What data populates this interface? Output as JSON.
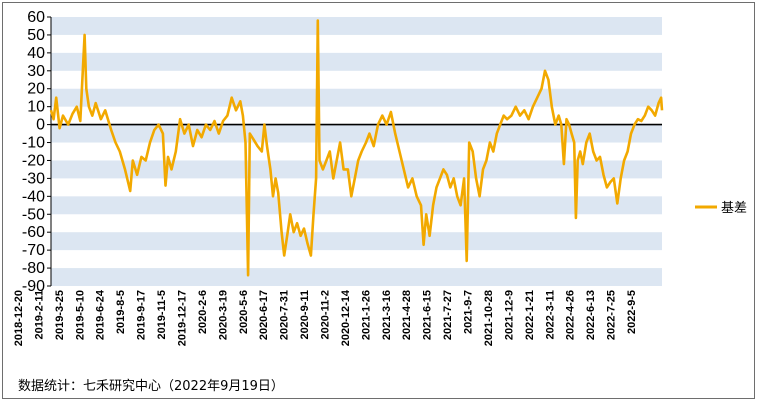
{
  "chart_data": {
    "type": "line",
    "title": "",
    "xlabel": "",
    "ylabel": "",
    "ylim": [
      -90,
      60
    ],
    "yticks": [
      60,
      50,
      40,
      30,
      20,
      10,
      0,
      -10,
      -20,
      -30,
      -40,
      -50,
      -60,
      -70,
      -80,
      -90
    ],
    "xticks": [
      "2018-12-20",
      "2019-2-11",
      "2019-3-25",
      "2019-5-10",
      "2019-6-24",
      "2019-8-5",
      "2019-9-17",
      "2019-11-5",
      "2019-12-17",
      "2020-2-6",
      "2020-3-19",
      "2020-5-6",
      "2020-6-17",
      "2020-7-31",
      "2020-9-11",
      "2020-11-2",
      "2020-12-14",
      "2021-1-26",
      "2021-3-16",
      "2021-4-28",
      "2021-6-15",
      "2021-7-27",
      "2021-9-7",
      "2021-10-28",
      "2021-12-9",
      "2022-1-21",
      "2022-3-11",
      "2022-4-26",
      "2022-6-13",
      "2022-7-25",
      "2022-9-5"
    ],
    "grid": "horizontal-bands",
    "legend_position": "right",
    "colors": {
      "line": "#F2A900",
      "band": "#DCE6F2",
      "zero": "#000000"
    },
    "series": [
      {
        "name": "基差",
        "points": [
          [
            0,
            8
          ],
          [
            0.3,
            3
          ],
          [
            0.6,
            15
          ],
          [
            1,
            -2
          ],
          [
            1.4,
            5
          ],
          [
            2,
            0
          ],
          [
            2.5,
            6
          ],
          [
            3,
            10
          ],
          [
            3.4,
            2
          ],
          [
            3.7,
            30
          ],
          [
            3.9,
            50
          ],
          [
            4.1,
            20
          ],
          [
            4.4,
            10
          ],
          [
            4.8,
            5
          ],
          [
            5.2,
            12
          ],
          [
            5.8,
            3
          ],
          [
            6.3,
            8
          ],
          [
            7,
            -3
          ],
          [
            7.5,
            -10
          ],
          [
            8,
            -15
          ],
          [
            8.6,
            -25
          ],
          [
            9.2,
            -37
          ],
          [
            9.5,
            -20
          ],
          [
            10,
            -28
          ],
          [
            10.5,
            -18
          ],
          [
            11,
            -20
          ],
          [
            11.5,
            -10
          ],
          [
            12,
            -3
          ],
          [
            12.5,
            0
          ],
          [
            13,
            -5
          ],
          [
            13.3,
            -34
          ],
          [
            13.6,
            -18
          ],
          [
            14,
            -25
          ],
          [
            14.5,
            -15
          ],
          [
            15,
            3
          ],
          [
            15.5,
            -5
          ],
          [
            16,
            0
          ],
          [
            16.5,
            -12
          ],
          [
            17,
            -3
          ],
          [
            17.5,
            -7
          ],
          [
            18,
            0
          ],
          [
            18.5,
            -3
          ],
          [
            19,
            2
          ],
          [
            19.5,
            -5
          ],
          [
            20,
            2
          ],
          [
            20.5,
            5
          ],
          [
            21,
            15
          ],
          [
            21.5,
            8
          ],
          [
            22,
            13
          ],
          [
            22.3,
            5
          ],
          [
            22.6,
            -10
          ],
          [
            22.9,
            -84
          ],
          [
            23.1,
            -5
          ],
          [
            23.5,
            -8
          ],
          [
            24,
            -12
          ],
          [
            24.5,
            -15
          ],
          [
            24.8,
            0
          ],
          [
            25.1,
            -12
          ],
          [
            25.5,
            -25
          ],
          [
            25.8,
            -40
          ],
          [
            26.1,
            -30
          ],
          [
            26.4,
            -38
          ],
          [
            26.8,
            -60
          ],
          [
            27.1,
            -73
          ],
          [
            27.5,
            -60
          ],
          [
            27.8,
            -50
          ],
          [
            28.2,
            -60
          ],
          [
            28.6,
            -55
          ],
          [
            29,
            -62
          ],
          [
            29.4,
            -58
          ],
          [
            29.8,
            -66
          ],
          [
            30.2,
            -73
          ],
          [
            30.5,
            -50
          ],
          [
            30.8,
            -30
          ],
          [
            31,
            58
          ],
          [
            31.2,
            -20
          ],
          [
            31.6,
            -25
          ],
          [
            32,
            -20
          ],
          [
            32.4,
            -15
          ],
          [
            32.8,
            -30
          ],
          [
            33.2,
            -20
          ],
          [
            33.6,
            -10
          ],
          [
            34,
            -25
          ],
          [
            34.5,
            -25
          ],
          [
            34.9,
            -40
          ],
          [
            35.3,
            -30
          ],
          [
            35.7,
            -20
          ],
          [
            36.1,
            -15
          ],
          [
            36.6,
            -10
          ],
          [
            37,
            -5
          ],
          [
            37.5,
            -12
          ],
          [
            38,
            0
          ],
          [
            38.5,
            5
          ],
          [
            39,
            0
          ],
          [
            39.5,
            7
          ],
          [
            40,
            -5
          ],
          [
            40.5,
            -15
          ],
          [
            41,
            -25
          ],
          [
            41.5,
            -35
          ],
          [
            42,
            -30
          ],
          [
            42.5,
            -40
          ],
          [
            43,
            -45
          ],
          [
            43.3,
            -67
          ],
          [
            43.6,
            -50
          ],
          [
            44,
            -62
          ],
          [
            44.4,
            -45
          ],
          [
            44.8,
            -35
          ],
          [
            45.2,
            -30
          ],
          [
            45.6,
            -25
          ],
          [
            46,
            -28
          ],
          [
            46.4,
            -35
          ],
          [
            46.8,
            -30
          ],
          [
            47.2,
            -40
          ],
          [
            47.6,
            -45
          ],
          [
            48,
            -30
          ],
          [
            48.3,
            -76
          ],
          [
            48.6,
            -10
          ],
          [
            49,
            -15
          ],
          [
            49.4,
            -30
          ],
          [
            49.8,
            -40
          ],
          [
            50.2,
            -25
          ],
          [
            50.6,
            -20
          ],
          [
            51,
            -10
          ],
          [
            51.4,
            -15
          ],
          [
            51.8,
            -5
          ],
          [
            52.2,
            0
          ],
          [
            52.6,
            5
          ],
          [
            53,
            3
          ],
          [
            53.5,
            5
          ],
          [
            54,
            10
          ],
          [
            54.5,
            5
          ],
          [
            55,
            8
          ],
          [
            55.5,
            3
          ],
          [
            56,
            10
          ],
          [
            56.5,
            15
          ],
          [
            57,
            20
          ],
          [
            57.4,
            30
          ],
          [
            57.8,
            25
          ],
          [
            58.2,
            10
          ],
          [
            58.6,
            0
          ],
          [
            59,
            5
          ],
          [
            59.3,
            0
          ],
          [
            59.6,
            -22
          ],
          [
            59.9,
            3
          ],
          [
            60.2,
            0
          ],
          [
            60.5,
            -5
          ],
          [
            60.8,
            -10
          ],
          [
            61,
            -52
          ],
          [
            61.2,
            -20
          ],
          [
            61.5,
            -15
          ],
          [
            61.8,
            -22
          ],
          [
            62.2,
            -10
          ],
          [
            62.6,
            -5
          ],
          [
            63,
            -15
          ],
          [
            63.4,
            -20
          ],
          [
            63.8,
            -18
          ],
          [
            64.2,
            -28
          ],
          [
            64.6,
            -35
          ],
          [
            65,
            -32
          ],
          [
            65.4,
            -30
          ],
          [
            65.8,
            -44
          ],
          [
            66.2,
            -30
          ],
          [
            66.6,
            -20
          ],
          [
            67,
            -15
          ],
          [
            67.4,
            -5
          ],
          [
            67.8,
            0
          ],
          [
            68.2,
            3
          ],
          [
            68.6,
            2
          ],
          [
            69,
            5
          ],
          [
            69.4,
            10
          ],
          [
            69.8,
            8
          ],
          [
            70.2,
            5
          ],
          [
            70.6,
            12
          ],
          [
            70.9,
            15
          ],
          [
            71,
            8
          ]
        ]
      }
    ],
    "x_domain": [
      0,
      71
    ]
  },
  "source_text": "数据统计：七禾研究中心（2022年9月19日）"
}
